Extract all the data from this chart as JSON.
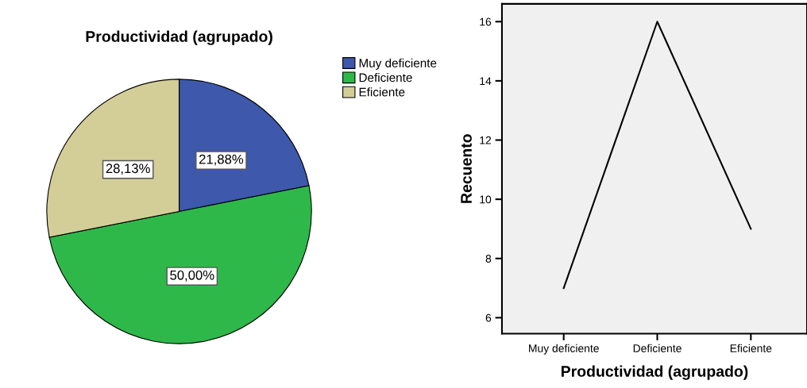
{
  "chart_data": [
    {
      "type": "pie",
      "title": "Productividad (agrupado)",
      "categories": [
        "Muy deficiente",
        "Deficiente",
        "Eficiente"
      ],
      "values": [
        21.88,
        50.0,
        28.13
      ],
      "colors": [
        "#3e58ac",
        "#2fb84a",
        "#d3ce97"
      ],
      "value_labels": [
        "21,88%",
        "50,00%",
        "28,13%"
      ],
      "legend": "top right"
    },
    {
      "type": "line",
      "xlabel": "Productividad (agrupado)",
      "ylabel": "Recuento",
      "categories": [
        "Muy deficiente",
        "Deficiente",
        "Eficiente"
      ],
      "series": [
        {
          "color": "#000000",
          "values": [
            7,
            16,
            9
          ]
        }
      ],
      "ylim": [
        5.46,
        16.6
      ],
      "yticks": [
        6,
        8,
        10,
        12,
        14,
        16
      ],
      "grid": false,
      "legend": false
    }
  ]
}
